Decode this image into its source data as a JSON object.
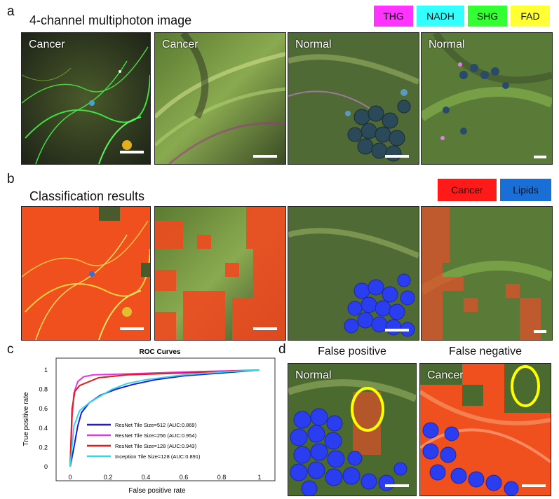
{
  "panel_a": {
    "letter": "a",
    "title": "4-channel multiphoton image",
    "legend": [
      {
        "label": "THG",
        "color": "#ff33ff"
      },
      {
        "label": "NADH",
        "color": "#33ffff"
      },
      {
        "label": "SHG",
        "color": "#33ff33"
      },
      {
        "label": "FAD",
        "color": "#ffff33"
      }
    ],
    "tile_labels": [
      "Cancer",
      "Cancer",
      "Normal",
      "Normal"
    ]
  },
  "panel_b": {
    "letter": "b",
    "title": "Classification results",
    "legend": [
      {
        "label": "Cancer",
        "color": "#ff1a1a"
      },
      {
        "label": "Lipids",
        "color": "#1a6fd6"
      }
    ]
  },
  "panel_c": {
    "letter": "c"
  },
  "panel_d": {
    "letter": "d",
    "titles": [
      "False positive",
      "False negative"
    ],
    "tile_labels": [
      "Normal",
      "Cancer"
    ]
  },
  "chart_data": {
    "type": "line",
    "title": "ROC Curves",
    "xlabel": "False positive rate",
    "ylabel": "True positive rate",
    "xlim": [
      0,
      1
    ],
    "ylim": [
      0,
      1
    ],
    "xticks": [
      "0",
      "0.2",
      "0.4",
      "0.6",
      "0.8",
      "1"
    ],
    "yticks": [
      "0",
      "0.2",
      "0.4",
      "0.6",
      "0.8",
      "1"
    ],
    "legend_position": "bottom-left",
    "series": [
      {
        "name": "ResNet Tile Size=512 (AUC:0.869)",
        "color": "#1a1ae6",
        "points": [
          [
            0,
            0
          ],
          [
            0.02,
            0.2
          ],
          [
            0.04,
            0.42
          ],
          [
            0.06,
            0.56
          ],
          [
            0.1,
            0.66
          ],
          [
            0.16,
            0.74
          ],
          [
            0.24,
            0.8
          ],
          [
            0.33,
            0.85
          ],
          [
            0.45,
            0.9
          ],
          [
            0.6,
            0.94
          ],
          [
            0.8,
            0.97
          ],
          [
            1,
            1
          ]
        ]
      },
      {
        "name": "ResNet Tile Size=256 (AUC:0.954)",
        "color": "#e633e6",
        "points": [
          [
            0,
            0
          ],
          [
            0.01,
            0.5
          ],
          [
            0.02,
            0.76
          ],
          [
            0.04,
            0.88
          ],
          [
            0.07,
            0.93
          ],
          [
            0.12,
            0.95
          ],
          [
            0.3,
            0.96
          ],
          [
            0.6,
            0.98
          ],
          [
            1,
            1
          ]
        ]
      },
      {
        "name": "ResNet Tile Size=128 (AUC:0.943)",
        "color": "#e61a1a",
        "points": [
          [
            0,
            0
          ],
          [
            0.01,
            0.6
          ],
          [
            0.025,
            0.78
          ],
          [
            0.05,
            0.84
          ],
          [
            0.1,
            0.88
          ],
          [
            0.15,
            0.92
          ],
          [
            0.3,
            0.95
          ],
          [
            0.6,
            0.97
          ],
          [
            1,
            1
          ]
        ]
      },
      {
        "name": "Inception Tile Size=128 (AUC:0.891)",
        "color": "#33d6e6",
        "points": [
          [
            0,
            0
          ],
          [
            0.02,
            0.42
          ],
          [
            0.05,
            0.58
          ],
          [
            0.1,
            0.66
          ],
          [
            0.15,
            0.72
          ],
          [
            0.22,
            0.8
          ],
          [
            0.3,
            0.86
          ],
          [
            0.4,
            0.9
          ],
          [
            0.6,
            0.95
          ],
          [
            0.8,
            0.98
          ],
          [
            1,
            1
          ]
        ]
      }
    ]
  }
}
